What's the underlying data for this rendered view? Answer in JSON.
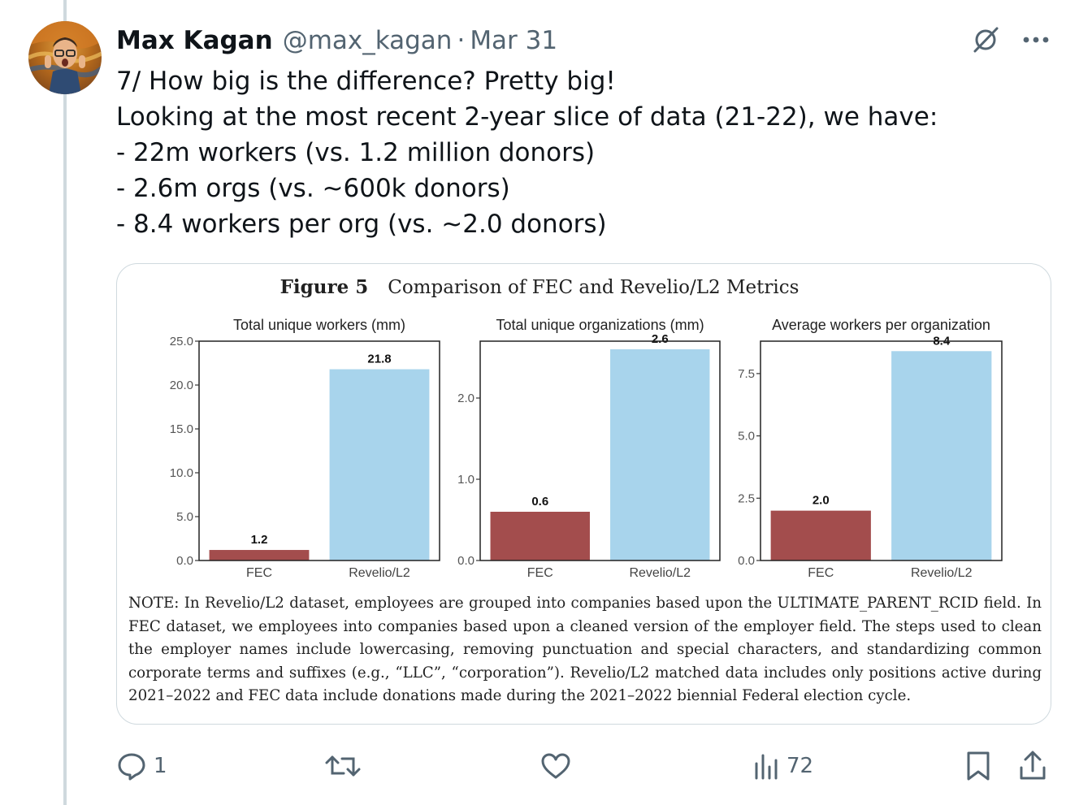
{
  "tweet": {
    "author_name": "Max Kagan",
    "handle": "@max_kagan",
    "separator": "·",
    "date": "Mar 31",
    "text": "7/ How big is the difference? Pretty big!\nLooking at the most recent 2-year slice of data (21-22), we have:\n- 22m workers (vs. 1.2 million donors)\n- 2.6m orgs (vs. ~600k donors)\n- 8.4 workers per org (vs. ~2.0 donors)"
  },
  "header_icons": [
    "grok-icon",
    "more-icon"
  ],
  "figure": {
    "number": "Figure 5",
    "title": "Comparison of FEC and Revelio/L2 Metrics",
    "note": "NOTE: In Revelio/L2 dataset, employees are grouped into companies based upon the ULTIMATE_PARENT_RCID field. In FEC dataset, we employees into companies based upon a cleaned version of the employer field. The steps used to clean the employer names include lowercasing, removing punctuation and special characters, and standardizing common corporate terms and suffixes (e.g., “LLC”, “corporation”). Revelio/L2 matched data includes only positions active during 2021–2022 and FEC data include donations made during the 2021–2022 biennial Federal election cycle."
  },
  "colors": {
    "fec": "#a34d4d",
    "revelio": "#a8d4ec"
  },
  "chart_data": [
    {
      "type": "bar",
      "title": "Total unique workers (mm)",
      "categories": [
        "FEC",
        "Revelio/L2"
      ],
      "values": [
        1.2,
        21.8
      ],
      "value_labels": [
        "1.2",
        "21.8"
      ],
      "ylim": [
        0,
        25
      ],
      "ticks": [
        0,
        5,
        10,
        15,
        20,
        25
      ],
      "tick_labels": [
        "0.0",
        "5.0",
        "10.0",
        "15.0",
        "20.0",
        "25.0"
      ]
    },
    {
      "type": "bar",
      "title": "Total unique organizations (mm)",
      "categories": [
        "FEC",
        "Revelio/L2"
      ],
      "values": [
        0.6,
        2.6
      ],
      "value_labels": [
        "0.6",
        "2.6"
      ],
      "ylim": [
        0,
        2.7
      ],
      "ticks": [
        0,
        1,
        2
      ],
      "tick_labels": [
        "0.0",
        "1.0",
        "2.0"
      ]
    },
    {
      "type": "bar",
      "title": "Average workers per organization",
      "categories": [
        "FEC",
        "Revelio/L2"
      ],
      "values": [
        2.0,
        8.4
      ],
      "value_labels": [
        "2.0",
        "8.4"
      ],
      "ylim": [
        0,
        8.8
      ],
      "ticks": [
        0,
        2.5,
        5,
        7.5
      ],
      "tick_labels": [
        "0.0",
        "2.5",
        "5.0",
        "7.5"
      ]
    }
  ],
  "actions": {
    "reply_count": "1",
    "retweet_count": "",
    "like_count": "",
    "views_count": "72"
  }
}
